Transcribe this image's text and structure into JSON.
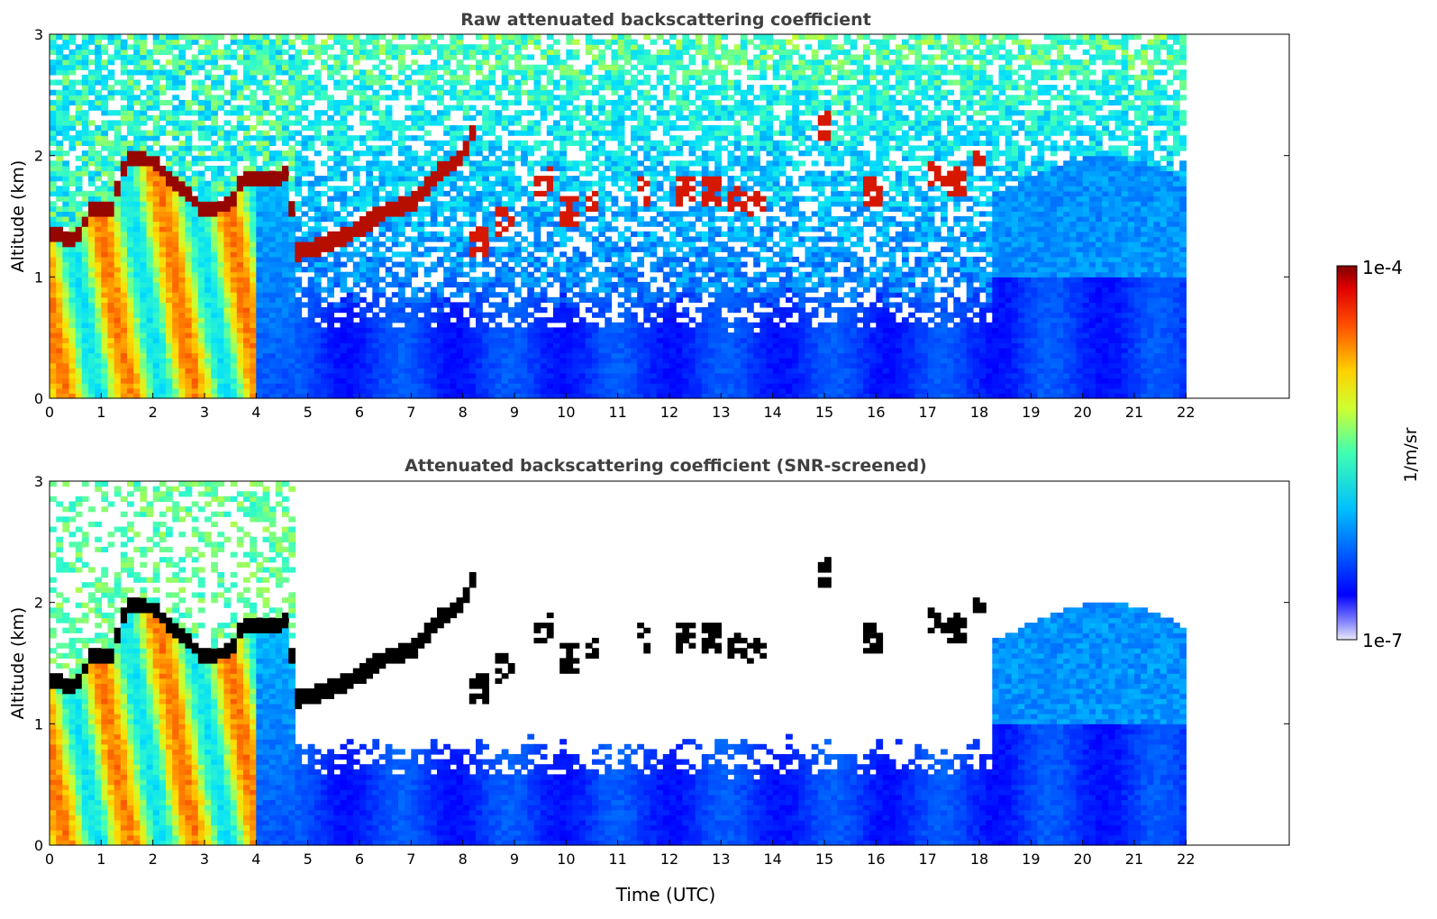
{
  "chart_data": [
    {
      "type": "heatmap",
      "title": "Raw attenuated backscattering coefficient",
      "xlabel": "",
      "ylabel": "Altitude (km)",
      "xlim": [
        0,
        24
      ],
      "ylim": [
        0,
        3
      ],
      "xticks": [
        0,
        1,
        2,
        3,
        4,
        5,
        6,
        7,
        8,
        9,
        10,
        11,
        12,
        13,
        14,
        15,
        16,
        17,
        18,
        19,
        20,
        21,
        22
      ],
      "yticks": [
        0,
        1,
        2,
        3
      ],
      "data_extent_x": [
        0,
        22
      ],
      "screened": false,
      "features": {
        "cloud_layer_km": [
          [
            0.0,
            1.38
          ],
          [
            0.5,
            1.3
          ],
          [
            0.8,
            1.55
          ],
          [
            1.2,
            1.55
          ],
          [
            1.5,
            2.0
          ],
          [
            2.0,
            1.95
          ],
          [
            2.5,
            1.75
          ],
          [
            3.0,
            1.55
          ],
          [
            3.5,
            1.6
          ],
          [
            3.7,
            1.8
          ],
          [
            4.2,
            1.8
          ],
          [
            4.6,
            1.85
          ],
          [
            4.8,
            1.2
          ],
          [
            5.5,
            1.3
          ],
          [
            6.0,
            1.4
          ],
          [
            6.5,
            1.55
          ],
          [
            7.0,
            1.6
          ],
          [
            7.5,
            1.85
          ],
          [
            8.0,
            2.0
          ],
          [
            8.2,
            2.2
          ]
        ],
        "scattered_clouds": [
          [
            8.3,
            1.3
          ],
          [
            8.8,
            1.45
          ],
          [
            9.6,
            1.8
          ],
          [
            10.1,
            1.55
          ],
          [
            10.5,
            1.6
          ],
          [
            11.5,
            1.7
          ],
          [
            12.3,
            1.72
          ],
          [
            12.8,
            1.7
          ],
          [
            13.3,
            1.65
          ],
          [
            13.7,
            1.6
          ],
          [
            15.0,
            2.25
          ],
          [
            15.9,
            1.7
          ],
          [
            17.2,
            1.85
          ],
          [
            17.6,
            1.8
          ],
          [
            18.0,
            1.95
          ]
        ]
      }
    },
    {
      "type": "heatmap",
      "title": "Attenuated backscattering coefficient (SNR-screened)",
      "xlabel": "Time (UTC)",
      "ylabel": "Altitude (km)",
      "xlim": [
        0,
        24
      ],
      "ylim": [
        0,
        3
      ],
      "xticks": [
        0,
        1,
        2,
        3,
        4,
        5,
        6,
        7,
        8,
        9,
        10,
        11,
        12,
        13,
        14,
        15,
        16,
        17,
        18,
        19,
        20,
        21,
        22
      ],
      "yticks": [
        0,
        1,
        2,
        3
      ],
      "data_extent_x": [
        0,
        22
      ],
      "screened": true
    }
  ],
  "colorbar": {
    "label": "1/m/sr",
    "max_label": "1e-4",
    "min_label": "1e-7",
    "vmin": 1e-07,
    "vmax": 0.0001,
    "scale": "log",
    "colormap": "jet"
  }
}
